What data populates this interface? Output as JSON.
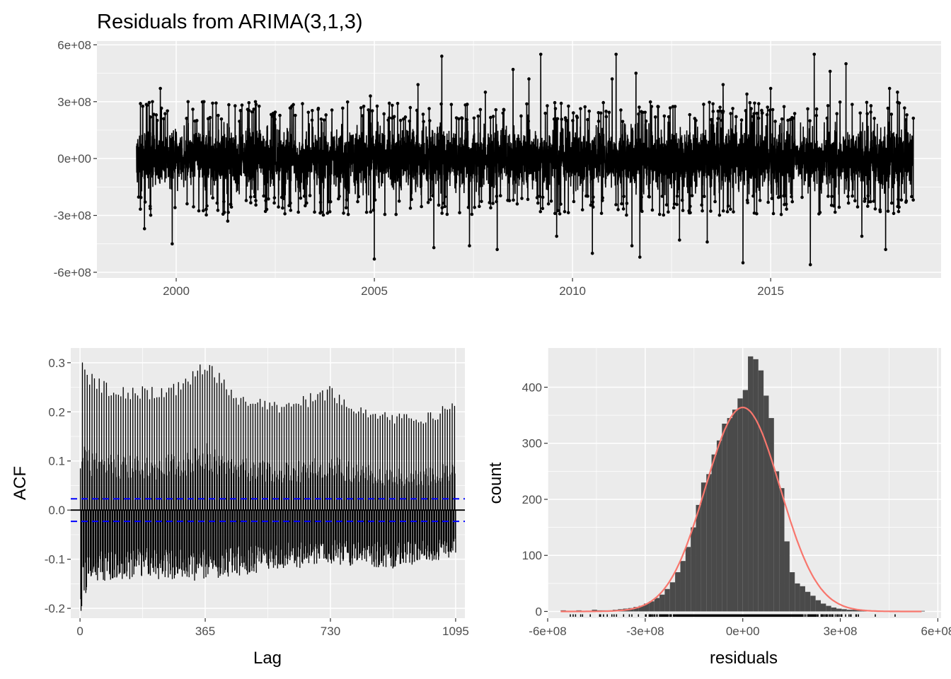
{
  "chart_data": [
    {
      "id": "residual-series",
      "type": "line",
      "title": "Residuals from ARIMA(3,1,3)",
      "xlabel": "",
      "ylabel": "",
      "xlim": [
        1998.0,
        2019.3
      ],
      "ylim": [
        -630000000.0,
        620000000.0
      ],
      "x_ticks": [
        {
          "value": 2000,
          "label": "2000"
        },
        {
          "value": 2005,
          "label": "2005"
        },
        {
          "value": 2010,
          "label": "2010"
        },
        {
          "value": 2015,
          "label": "2015"
        }
      ],
      "y_ticks": [
        {
          "value": 600000000.0,
          "label": "6e+08"
        },
        {
          "value": 300000000.0,
          "label": "3e+08"
        },
        {
          "value": 0,
          "label": "0e+00"
        },
        {
          "value": -300000000.0,
          "label": "-3e+08"
        },
        {
          "value": -600000000.0,
          "label": "-6e+08"
        }
      ],
      "time_range": [
        1999.0,
        2018.6
      ],
      "observations": 7150,
      "typical_band": [
        -130000000.0,
        130000000.0
      ],
      "extremes": [
        {
          "x": 1999.1,
          "y": 290000000.0
        },
        {
          "x": 1999.2,
          "y": -370000000.0
        },
        {
          "x": 1999.4,
          "y": 300000000.0
        },
        {
          "x": 1999.6,
          "y": 370000000.0
        },
        {
          "x": 1999.9,
          "y": -450000000.0
        },
        {
          "x": 2000.3,
          "y": 300000000.0
        },
        {
          "x": 2000.7,
          "y": 300000000.0
        },
        {
          "x": 2001.3,
          "y": -330000000.0
        },
        {
          "x": 2002.0,
          "y": 300000000.0
        },
        {
          "x": 2004.9,
          "y": 330000000.0
        },
        {
          "x": 2005.0,
          "y": -530000000.0
        },
        {
          "x": 2006.1,
          "y": 390000000.0
        },
        {
          "x": 2006.5,
          "y": -470000000.0
        },
        {
          "x": 2006.7,
          "y": 540000000.0
        },
        {
          "x": 2007.4,
          "y": -460000000.0
        },
        {
          "x": 2007.8,
          "y": 350000000.0
        },
        {
          "x": 2008.1,
          "y": -480000000.0
        },
        {
          "x": 2008.5,
          "y": 470000000.0
        },
        {
          "x": 2008.9,
          "y": 420000000.0
        },
        {
          "x": 2009.2,
          "y": 550000000.0
        },
        {
          "x": 2009.6,
          "y": -410000000.0
        },
        {
          "x": 2010.5,
          "y": -500000000.0
        },
        {
          "x": 2011.0,
          "y": 420000000.0
        },
        {
          "x": 2011.1,
          "y": 550000000.0
        },
        {
          "x": 2011.5,
          "y": -460000000.0
        },
        {
          "x": 2011.6,
          "y": 450000000.0
        },
        {
          "x": 2011.7,
          "y": -520000000.0
        },
        {
          "x": 2012.7,
          "y": -430000000.0
        },
        {
          "x": 2013.4,
          "y": -440000000.0
        },
        {
          "x": 2013.8,
          "y": 390000000.0
        },
        {
          "x": 2014.3,
          "y": -550000000.0
        },
        {
          "x": 2014.4,
          "y": 340000000.0
        },
        {
          "x": 2015.0,
          "y": 370000000.0
        },
        {
          "x": 2016.0,
          "y": -560000000.0
        },
        {
          "x": 2016.1,
          "y": 550000000.0
        },
        {
          "x": 2016.5,
          "y": 460000000.0
        },
        {
          "x": 2016.9,
          "y": 500000000.0
        },
        {
          "x": 2017.3,
          "y": -410000000.0
        },
        {
          "x": 2017.9,
          "y": -480000000.0
        },
        {
          "x": 2018.0,
          "y": 370000000.0
        },
        {
          "x": 2018.2,
          "y": 350000000.0
        }
      ],
      "colors": {
        "line": "#000000",
        "panel": "#ebebeb",
        "grid": "#ffffff"
      }
    },
    {
      "id": "acf",
      "type": "bar",
      "title": "",
      "xlabel": "Lag",
      "ylabel": "ACF",
      "xlim": [
        -27,
        1122
      ],
      "ylim": [
        -0.22,
        0.33
      ],
      "x_ticks": [
        {
          "value": 0,
          "label": "0"
        },
        {
          "value": 365,
          "label": "365"
        },
        {
          "value": 730,
          "label": "730"
        },
        {
          "value": 1095,
          "label": "1095"
        }
      ],
      "y_ticks": [
        {
          "value": 0.3,
          "label": "0.3"
        },
        {
          "value": 0.2,
          "label": "0.2"
        },
        {
          "value": 0.1,
          "label": "0.1"
        },
        {
          "value": 0.0,
          "label": "0.0"
        },
        {
          "value": -0.1,
          "label": "-0.1"
        },
        {
          "value": -0.2,
          "label": "-0.2"
        }
      ],
      "lags": [
        1,
        1095
      ],
      "confidence_bound": 0.023,
      "weekly_peak_envelope": [
        {
          "lag": 7,
          "acf": 0.295
        },
        {
          "lag": 60,
          "acf": 0.26
        },
        {
          "lag": 200,
          "acf": 0.245
        },
        {
          "lag": 300,
          "acf": 0.26
        },
        {
          "lag": 364,
          "acf": 0.31
        },
        {
          "lag": 450,
          "acf": 0.24
        },
        {
          "lag": 600,
          "acf": 0.215
        },
        {
          "lag": 728,
          "acf": 0.25
        },
        {
          "lag": 850,
          "acf": 0.2
        },
        {
          "lag": 1000,
          "acf": 0.19
        },
        {
          "lag": 1092,
          "acf": 0.22
        }
      ],
      "trough_envelope": [
        {
          "lag": 3,
          "acf": -0.205
        },
        {
          "lag": 30,
          "acf": -0.15
        },
        {
          "lag": 200,
          "acf": -0.14
        },
        {
          "lag": 365,
          "acf": -0.145
        },
        {
          "lag": 500,
          "acf": -0.13
        },
        {
          "lag": 730,
          "acf": -0.11
        },
        {
          "lag": 900,
          "acf": -0.12
        },
        {
          "lag": 1095,
          "acf": -0.1
        }
      ],
      "colors": {
        "bars": "#000000",
        "bounds": "#0000ff",
        "zero": "#000000"
      }
    },
    {
      "id": "residual-histogram",
      "type": "bar",
      "title": "",
      "xlabel": "residuals",
      "ylabel": "count",
      "xlim": [
        -600000000.0,
        610000000.0
      ],
      "ylim": [
        -12,
        470
      ],
      "x_ticks": [
        {
          "value": -600000000.0,
          "label": "-6e+08"
        },
        {
          "value": -300000000.0,
          "label": "-3e+08"
        },
        {
          "value": 0,
          "label": "0e+00"
        },
        {
          "value": 300000000.0,
          "label": "3e+08"
        },
        {
          "value": 600000000.0,
          "label": "6e+08"
        }
      ],
      "y_ticks": [
        {
          "value": 0,
          "label": "0"
        },
        {
          "value": 100,
          "label": "100"
        },
        {
          "value": 200,
          "label": "200"
        },
        {
          "value": 300,
          "label": "300"
        },
        {
          "value": 400,
          "label": "400"
        }
      ],
      "bin_start": -560000000.0,
      "bin_width": 16000000.0,
      "counts": [
        2,
        1,
        1,
        2,
        1,
        1,
        3,
        2,
        2,
        2,
        3,
        4,
        5,
        6,
        8,
        10,
        14,
        18,
        24,
        30,
        40,
        52,
        70,
        90,
        115,
        150,
        190,
        230,
        245,
        280,
        305,
        335,
        345,
        360,
        380,
        395,
        455,
        450,
        430,
        385,
        345,
        250,
        220,
        125,
        70,
        50,
        45,
        35,
        28,
        20,
        14,
        10,
        7,
        5,
        4,
        3,
        3,
        2,
        2,
        1,
        1,
        1,
        1,
        1,
        1,
        1,
        1,
        1,
        1,
        1
      ],
      "rug_range": [
        -570000000.0,
        550000000.0
      ],
      "normal_curve": {
        "mean": 0,
        "sd": 115000000.0,
        "peak": 364
      },
      "colors": {
        "bars": "#4a4a4a",
        "curve": "#f8766d",
        "rug": "#000000"
      }
    }
  ]
}
